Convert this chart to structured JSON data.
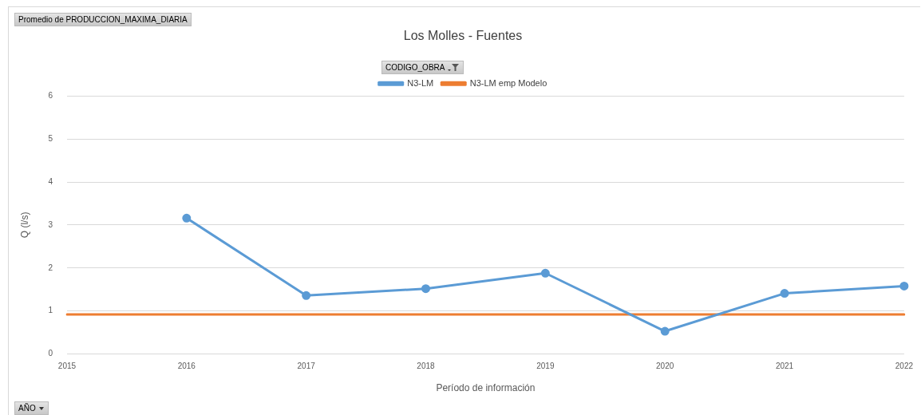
{
  "chart_data": {
    "type": "line",
    "title": "Los Molles - Fuentes",
    "xlabel": "Período de información",
    "ylabel": "Q (l/s)",
    "categories": [
      "2015",
      "2016",
      "2017",
      "2018",
      "2019",
      "2020",
      "2021",
      "2022"
    ],
    "series": [
      {
        "name": "N3-LM",
        "color": "#5b9bd5",
        "values": [
          null,
          3.16,
          1.36,
          1.52,
          1.88,
          0.53,
          1.41,
          1.58
        ]
      },
      {
        "name": "N3-LM emp Modelo",
        "color": "#ed7d31",
        "marker": "none",
        "values": [
          0.92,
          0.92,
          0.92,
          0.92,
          0.92,
          0.92,
          0.92,
          0.92
        ]
      }
    ],
    "ylim": [
      0,
      6
    ],
    "yticks": [
      0,
      1,
      2,
      3,
      4,
      5,
      6
    ],
    "grid": "y",
    "legend": "top",
    "marker": "circle",
    "line_style": "solid",
    "annotations": [
      "Promedio de PRODUCCION_MAXIMA_DIARIA",
      "CODIGO_OBRA",
      "AÑO"
    ]
  }
}
